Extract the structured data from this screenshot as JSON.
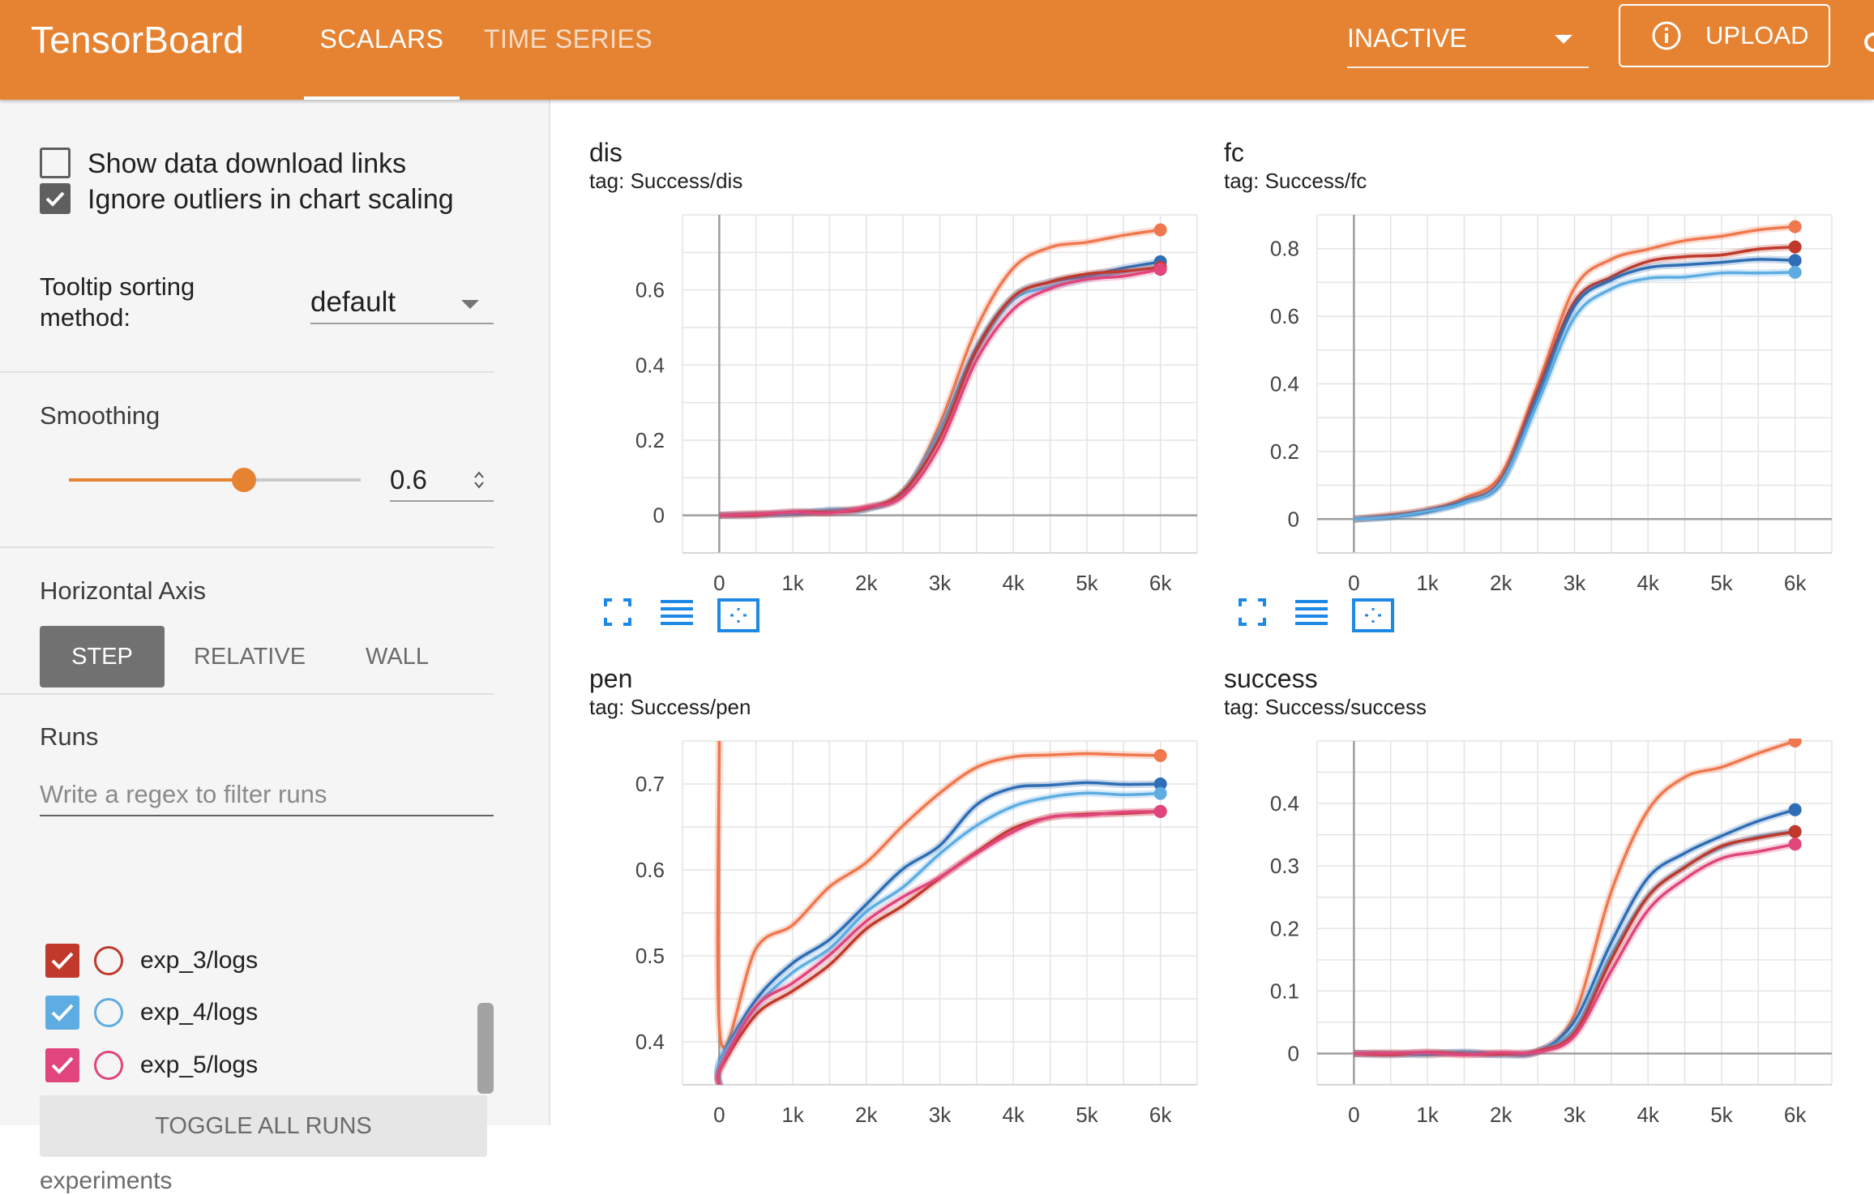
{
  "app": {
    "brand": "TensorBoard",
    "tabs": [
      {
        "label": "SCALARS",
        "active": true
      },
      {
        "label": "TIME SERIES",
        "active": false
      }
    ],
    "plugin_select": "INACTIVE",
    "upload_label": "UPLOAD",
    "accent": "#e58333"
  },
  "sidebar": {
    "show_download_links": {
      "label": "Show data download links",
      "checked": false
    },
    "ignore_outliers": {
      "label": "Ignore outliers in chart scaling",
      "checked": true
    },
    "tooltip_label": "Tooltip sorting method:",
    "tooltip_value": "default",
    "smoothing_title": "Smoothing",
    "smoothing_value": "0.6",
    "smoothing_fraction": 0.6,
    "axis_title": "Horizontal Axis",
    "axis_buttons": [
      "STEP",
      "RELATIVE",
      "WALL"
    ],
    "axis_selected": "STEP",
    "runs_title": "Runs",
    "runs_filter_placeholder": "Write a regex to filter runs",
    "runs": [
      {
        "name": "exp_3/logs",
        "color": "#c0392b",
        "checked": true
      },
      {
        "name": "exp_4/logs",
        "color": "#5dade2",
        "checked": true
      },
      {
        "name": "exp_5/logs",
        "color": "#e0457b",
        "checked": true
      }
    ],
    "toggle_all_label": "TOGGLE ALL RUNS",
    "footer": "experiments"
  },
  "series_colors": {
    "orange": "#f0784e",
    "blue": "#2f6eb5",
    "light_blue": "#5dade2",
    "red": "#c0392b",
    "pink": "#e0457b"
  },
  "chart_data": [
    {
      "type": "line",
      "title": "dis",
      "tag": "tag: Success/dis",
      "xlim": [
        -500,
        6500
      ],
      "ylim": [
        -0.1,
        0.8
      ],
      "xticks": [
        0,
        1000,
        2000,
        3000,
        4000,
        5000,
        6000
      ],
      "xtick_labels": [
        "0",
        "1k",
        "2k",
        "3k",
        "4k",
        "5k",
        "6k"
      ],
      "yticks": [
        0,
        0.2,
        0.4,
        0.6
      ],
      "ytick_labels": [
        "0",
        "0.2",
        "0.4",
        "0.6"
      ],
      "x": [
        0,
        500,
        1000,
        1500,
        2000,
        2500,
        3000,
        3500,
        4000,
        4500,
        5000,
        5500,
        6000
      ],
      "series": [
        {
          "color_key": "orange",
          "values": [
            0,
            0.003,
            0.006,
            0.01,
            0.02,
            0.06,
            0.24,
            0.5,
            0.66,
            0.71,
            0.73,
            0.745,
            0.76
          ]
        },
        {
          "color_key": "blue",
          "values": [
            0,
            0.003,
            0.006,
            0.01,
            0.02,
            0.06,
            0.22,
            0.45,
            0.58,
            0.62,
            0.64,
            0.655,
            0.675
          ]
        },
        {
          "color_key": "light_blue",
          "values": [
            0,
            0.003,
            0.006,
            0.01,
            0.02,
            0.06,
            0.22,
            0.44,
            0.57,
            0.61,
            0.63,
            0.645,
            0.66
          ]
        },
        {
          "color_key": "red",
          "values": [
            0,
            0.003,
            0.006,
            0.01,
            0.02,
            0.06,
            0.21,
            0.44,
            0.58,
            0.625,
            0.64,
            0.65,
            0.66
          ]
        },
        {
          "color_key": "pink",
          "values": [
            0,
            0.003,
            0.006,
            0.01,
            0.02,
            0.05,
            0.19,
            0.41,
            0.55,
            0.605,
            0.625,
            0.64,
            0.655
          ]
        }
      ]
    },
    {
      "type": "line",
      "title": "fc",
      "tag": "tag: Success/fc",
      "xlim": [
        -500,
        6500
      ],
      "ylim": [
        -0.1,
        0.9
      ],
      "xticks": [
        0,
        1000,
        2000,
        3000,
        4000,
        5000,
        6000
      ],
      "xtick_labels": [
        "0",
        "1k",
        "2k",
        "3k",
        "4k",
        "5k",
        "6k"
      ],
      "yticks": [
        0,
        0.2,
        0.4,
        0.6,
        0.8
      ],
      "ytick_labels": [
        "0",
        "0.2",
        "0.4",
        "0.6",
        "0.8"
      ],
      "x": [
        0,
        500,
        1000,
        1500,
        2000,
        2500,
        3000,
        3500,
        4000,
        4500,
        5000,
        5500,
        6000
      ],
      "series": [
        {
          "color_key": "orange",
          "values": [
            0,
            0.01,
            0.03,
            0.06,
            0.13,
            0.4,
            0.68,
            0.77,
            0.8,
            0.82,
            0.84,
            0.855,
            0.865
          ]
        },
        {
          "color_key": "red",
          "values": [
            0,
            0.01,
            0.03,
            0.05,
            0.12,
            0.38,
            0.64,
            0.72,
            0.76,
            0.775,
            0.785,
            0.795,
            0.805
          ]
        },
        {
          "color_key": "blue",
          "values": [
            0,
            0.01,
            0.02,
            0.05,
            0.11,
            0.36,
            0.63,
            0.71,
            0.74,
            0.755,
            0.76,
            0.765,
            0.765
          ]
        },
        {
          "color_key": "light_blue",
          "values": [
            0,
            0.01,
            0.02,
            0.05,
            0.11,
            0.34,
            0.6,
            0.68,
            0.71,
            0.72,
            0.725,
            0.728,
            0.73
          ]
        }
      ]
    },
    {
      "type": "line",
      "title": "pen",
      "tag": "tag: Success/pen",
      "xlim": [
        -500,
        6500
      ],
      "ylim": [
        0.35,
        0.75
      ],
      "xticks": [
        0,
        1000,
        2000,
        3000,
        4000,
        5000,
        6000
      ],
      "xtick_labels": [
        "0",
        "1k",
        "2k",
        "3k",
        "4k",
        "5k",
        "6k"
      ],
      "yticks": [
        0.4,
        0.5,
        0.6,
        0.7
      ],
      "ytick_labels": [
        "0.4",
        "0.5",
        "0.6",
        "0.7"
      ],
      "x": [
        0,
        20,
        500,
        1000,
        1500,
        2000,
        2500,
        3000,
        3500,
        4000,
        4500,
        5000,
        5500,
        6000
      ],
      "series": [
        {
          "color_key": "orange",
          "values": [
            0.75,
            0.4,
            0.51,
            0.535,
            0.58,
            0.61,
            0.65,
            0.69,
            0.72,
            0.73,
            0.735,
            0.735,
            0.733,
            0.733
          ]
        },
        {
          "color_key": "blue",
          "values": [
            0.35,
            0.38,
            0.45,
            0.49,
            0.52,
            0.56,
            0.6,
            0.63,
            0.675,
            0.695,
            0.7,
            0.7,
            0.7,
            0.7
          ]
        },
        {
          "color_key": "light_blue",
          "values": [
            0.35,
            0.38,
            0.44,
            0.48,
            0.51,
            0.55,
            0.58,
            0.62,
            0.65,
            0.675,
            0.685,
            0.688,
            0.689,
            0.689
          ]
        },
        {
          "color_key": "red",
          "values": [
            0.35,
            0.37,
            0.43,
            0.46,
            0.49,
            0.53,
            0.56,
            0.59,
            0.62,
            0.65,
            0.66,
            0.665,
            0.667,
            0.668
          ]
        },
        {
          "color_key": "pink",
          "values": [
            0.35,
            0.37,
            0.44,
            0.47,
            0.5,
            0.54,
            0.57,
            0.59,
            0.62,
            0.645,
            0.66,
            0.665,
            0.667,
            0.668
          ]
        }
      ]
    },
    {
      "type": "line",
      "title": "success",
      "tag": "tag: Success/success",
      "xlim": [
        -500,
        6500
      ],
      "ylim": [
        -0.05,
        0.5
      ],
      "xticks": [
        0,
        1000,
        2000,
        3000,
        4000,
        5000,
        6000
      ],
      "xtick_labels": [
        "0",
        "1k",
        "2k",
        "3k",
        "4k",
        "5k",
        "6k"
      ],
      "yticks": [
        0,
        0.1,
        0.2,
        0.3,
        0.4
      ],
      "ytick_labels": [
        "0",
        "0.1",
        "0.2",
        "0.3",
        "0.4"
      ],
      "x": [
        0,
        500,
        1000,
        1500,
        2000,
        2500,
        3000,
        3500,
        4000,
        4500,
        5000,
        5500,
        6000
      ],
      "series": [
        {
          "color_key": "orange",
          "values": [
            0,
            0,
            0,
            0,
            0,
            0.005,
            0.06,
            0.26,
            0.39,
            0.44,
            0.46,
            0.48,
            0.5
          ]
        },
        {
          "color_key": "blue",
          "values": [
            0,
            0,
            0,
            0,
            0,
            0.003,
            0.05,
            0.18,
            0.28,
            0.32,
            0.35,
            0.37,
            0.39
          ]
        },
        {
          "color_key": "light_blue",
          "values": [
            0,
            0,
            0,
            0,
            0,
            0.002,
            0.04,
            0.16,
            0.25,
            0.3,
            0.33,
            0.345,
            0.355
          ]
        },
        {
          "color_key": "red",
          "values": [
            0,
            0,
            0,
            0,
            0,
            0.002,
            0.035,
            0.15,
            0.25,
            0.3,
            0.33,
            0.345,
            0.355
          ]
        },
        {
          "color_key": "pink",
          "values": [
            0,
            0,
            0,
            0,
            0,
            0.002,
            0.03,
            0.13,
            0.23,
            0.28,
            0.31,
            0.325,
            0.335
          ]
        }
      ]
    }
  ]
}
